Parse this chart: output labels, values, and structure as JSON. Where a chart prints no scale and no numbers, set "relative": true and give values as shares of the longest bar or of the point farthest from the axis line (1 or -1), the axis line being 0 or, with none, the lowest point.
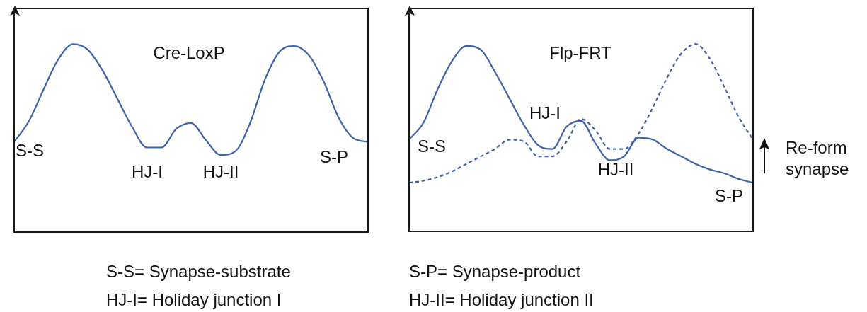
{
  "chart_data": [
    {
      "type": "line",
      "relative": true,
      "categories": [
        null,
        null,
        null,
        null,
        null,
        null,
        null,
        null,
        null,
        null,
        null,
        null,
        null,
        null,
        null,
        null,
        null,
        null,
        null,
        null,
        null,
        null,
        null,
        null,
        null
      ],
      "series": [
        {
          "color": "#3d62ad",
          "line_style": "solid",
          "values": [
            0.48,
            0.59,
            0.76,
            0.92,
            1.0,
            0.97,
            0.86,
            0.71,
            0.56,
            0.45,
            0.45,
            0.55,
            0.58,
            0.49,
            0.41,
            0.43,
            0.58,
            0.81,
            0.96,
            0.99,
            0.94,
            0.8,
            0.61,
            0.5,
            0.48
          ]
        }
      ],
      "annotations": [
        "Cre-LoxP",
        "S-S",
        "HJ-I",
        "HJ-II",
        "S-P",
        "S-S= Synapse-substrate",
        "HJ-I= Holiday junction I"
      ],
      "legend": false,
      "marker": "none"
    },
    {
      "type": "line",
      "relative": true,
      "categories": [
        null,
        null,
        null,
        null,
        null,
        null,
        null,
        null,
        null,
        null,
        null,
        null,
        null,
        null,
        null,
        null,
        null,
        null,
        null,
        null,
        null,
        null,
        null,
        null,
        null
      ],
      "series": [
        {
          "color": "#3d62ad",
          "line_style": "solid",
          "values": [
            0.49,
            0.58,
            0.76,
            0.91,
            0.99,
            0.97,
            0.85,
            0.71,
            0.57,
            0.46,
            0.44,
            0.56,
            0.59,
            0.47,
            0.38,
            0.4,
            0.5,
            0.49,
            0.44,
            0.4,
            0.36,
            0.33,
            0.31,
            0.28,
            0.26
          ]
        },
        {
          "color": "#3d62ad",
          "line_style": "dashed",
          "values": [
            0.26,
            0.27,
            0.29,
            0.32,
            0.36,
            0.4,
            0.44,
            0.49,
            0.48,
            0.4,
            0.4,
            0.48,
            0.6,
            0.54,
            0.44,
            0.44,
            0.52,
            0.66,
            0.82,
            0.95,
            1.0,
            0.92,
            0.77,
            0.61,
            0.49
          ]
        }
      ],
      "annotations": [
        "Flp-FRT",
        "S-S",
        "HJ-I",
        "HJ-II",
        "S-P",
        "Re-form synapse",
        "S-P= Synapse-product",
        "HJ-II= Holiday junction II"
      ],
      "legend": false,
      "marker": "none"
    }
  ]
}
